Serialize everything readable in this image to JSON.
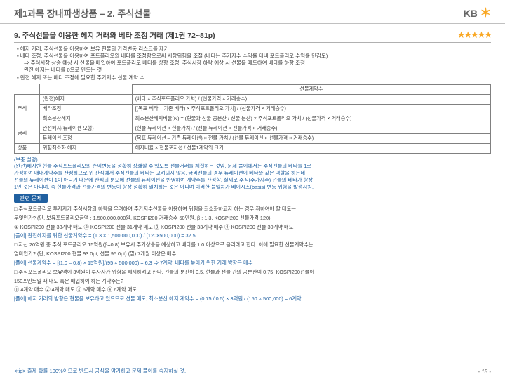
{
  "header": {
    "title": "제1과목 장내파생상품 – 2. 주식선물",
    "logo_text": "KB"
  },
  "section": {
    "title": "9. 주식선물을 이용한 헤지 거래와 베타 조정 거래 (제1권 72~81p)",
    "stars": "★★★★★"
  },
  "bullets": {
    "b1": "▪ 헤지 거래: 주식선물을 이용하여 보유 현물의 가격변동 리스크를 제거",
    "b2": "▪ 베타 조정: 주식선물을 이용하여 포트폴리오의 베타를 조정함으로써 시장위험을 조절 (베타는 주가지수 수익률 대비 포트폴리오 수익률 민감도)",
    "b3": "⇒ 주식시장 상승 예상 시 선물을 매입하여 포트폴리오 베타를 상향 조정, 주식시장 하락 예상 시 선물을 매도하여 베타를 하향 조정",
    "b4": "완전 헤지는 베타를 0으로 만드는 것",
    "b5": "▪ 완전 헤지 또는 베타 조정에 필요한 주가지수 선물 계약 수"
  },
  "table": {
    "hdr": "선물계약수",
    "rows": [
      {
        "g": "주식",
        "a": "(완전)헤지",
        "b": "(베타 × 주식포트폴리오 가치) / (선물가격 × 거래승수)"
      },
      {
        "g": "",
        "a": "베타조정",
        "b": "[(목표 베타 – 기존 베타) × 주식포트폴리오 가치] / (선물가격 × 거래승수)"
      },
      {
        "g": "",
        "a": "최소분산헤지",
        "b": "최소분산헤지비율(N) = (현물과 선물 공분산 / 선물 분산) × 주식포트폴리오 가치 / (선물가격 × 거래승수)"
      },
      {
        "g": "금리",
        "a": "완전헤지(듀레이션 모형)",
        "b": "(현물 듀레이션 × 현물가치) / (선물 듀레이션 × 선물가격 × 거래승수)"
      },
      {
        "g": "",
        "a": "듀레이션 조정",
        "b": "(목표 듀레이션 – 기존 듀레이션) × 현물 가치 / (선물 듀레이션 × 선물가격 × 거래승수)"
      },
      {
        "g": "상품",
        "a": "위험최소화 헤지",
        "b": "헤지비율 × 현물포지션 / 선물1계약의 크기"
      }
    ]
  },
  "supp": {
    "head": "(보충 설명)",
    "l1": "(완전)헤지란 현물 주식포트폴리오의 손익변동을 정확히 상쇄할 수 있도록 선물거래를 체결하는 것임. 문제 풀이에서는 주식선물의 베타를 1로",
    "l2": "가정하여 매매계약수를 산정하므로 위 산식에서 주식선물의 베타는 고려되지 않음. 금리선물의 경우 듀레이션이 베타와 같은 역할을 하는데",
    "l3": "선물의 듀레이션이 1이 아니기 때문에 산식의 분모에 선물의 듀레이션을 반영하여 계약수를 산정함. 실제로 주식(주가지수) 선물의 베타가 항상",
    "l4": "1인 것은 아니며, 즉 현물가격과 선물가격의 변동이 항상 정확히 일치하는 것은 아니며 이러한 불일치가 베이시스(basis) 변동 위험을 발생시킴."
  },
  "badge": "관련 문제",
  "problems": {
    "p1a": "□ 주식포트폴리오 투자자가 주식시장의 하락을 우려하여 주가지수선물을 이용하여 위험을 최소화하고자 하는 경우 취하여야 할 태도는",
    "p1b": "    무엇인가? (단, 보유포트폴리오금액 : 1,500,000,000원,  KOSPI200 거래승수 50만원,  β : 1.3, KOSPI200 선물가격 120)",
    "p1c": "    ① KOSPI200 선물 33계약 매도    ② KOSPI200 선물 31계약 매도    ③ KOSPI200 선물 33계약 매수    ④ KOSPI200 선물 30계약 매도",
    "p1s": "    [풀이] 완전헤지를 위한 선물계약수 = (1.3 × 1,500,000,000) / (120×500,000) = 32.5",
    "p2a": "□ 자산 20억원 중 주식 포트폴리오 15억원(β=0.8) 보유시 주가상승을 예상하고 베타를 1.0 이상으로 올리려고 한다. 이에 필요한 선물계약수는",
    "p2b": "    얼마인가? (단, KOSPI200 현물 93.0pt, 선물 95.0pt) (밑) 7개월 이상은 매수",
    "p2s": "    [풀이] 선물계약수 = [(1.0 – 0.8) × 15억원]/(95 × 500,000) = 6.3 ⇒ 7계약, 베타를 높이기 위한 거래 방향은 매수",
    "p3a": "□ 주식포트폴리오 보유액이 3억원이 투자자가 위험을 헤지하려고 한다. 선물의 분산이 0.5, 현물과 선물 간의 공분산이 0.75, KOSPI200선물이",
    "p3b": "    150포인트일 때 매도 혹은 매입하여 하는 계약수는?",
    "p3c": "    ① 4계약 매수    ② 4계약 매도    ③ 6계약 매수    ④ 6계약 매도",
    "p3s": "    [풀이] 헤지 거래의 방향은 현물을 보유하고 있으므로 선물 매도, 최소분산 헤지 계약수 = (0.75 / 0.5) × 3억원 / (150 × 500,000) = 6계약"
  },
  "tip": "<tip> 출제 확률 100%이므로 반드시 공식을 암기하고 문제 풀이를 숙지하실 것.",
  "pagenum": "- 18 -",
  "colors": {
    "accent": "#2060a0",
    "star": "#f9a825",
    "border": "#808080",
    "text": "#404040"
  }
}
